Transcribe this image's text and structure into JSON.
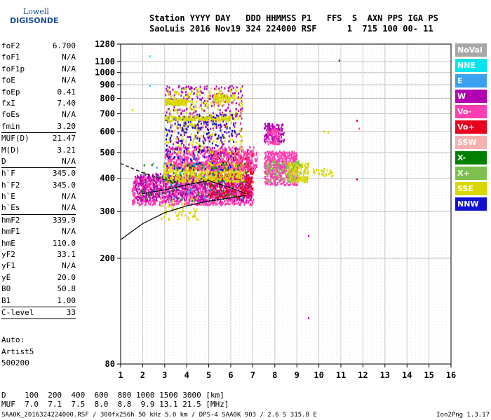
{
  "logo": {
    "top": "Lowell",
    "bottom": "DIGISONDE"
  },
  "header": {
    "line1": "Station YYYY DAY   DDD HHMMSS P1   FFS  S  AXN PPS IGA PS",
    "line2": "SaoLuis 2016 Nov19 324 224000 RSF      1  715 100 00- 11"
  },
  "params": [
    {
      "label": "foF2",
      "value": "6.700"
    },
    {
      "label": "foF1",
      "value": "N/A"
    },
    {
      "label": "foF1p",
      "value": "N/A"
    },
    {
      "label": "foE",
      "value": "N/A"
    },
    {
      "label": "foEp",
      "value": "0.41"
    },
    {
      "label": "fxI",
      "value": "7.40"
    },
    {
      "label": "foEs",
      "value": "N/A"
    },
    {
      "label": "fmin",
      "value": "3.20"
    },
    {
      "sep": true
    },
    {
      "label": "MUF(D)",
      "value": "21.47"
    },
    {
      "label": "M(D)",
      "value": "3.21"
    },
    {
      "label": "D",
      "value": "N/A"
    },
    {
      "sep": true
    },
    {
      "label": "h`F",
      "value": "345.0"
    },
    {
      "label": "h`F2",
      "value": "345.0"
    },
    {
      "label": "h`E",
      "value": "N/A"
    },
    {
      "label": "h`Es",
      "value": "N/A"
    },
    {
      "sep": true
    },
    {
      "label": "hmF2",
      "value": "339.9"
    },
    {
      "label": "hmF1",
      "value": "N/A"
    },
    {
      "label": "hmE",
      "value": "110.0"
    },
    {
      "label": "yF2",
      "value": "33.1"
    },
    {
      "label": "yF1",
      "value": "N/A"
    },
    {
      "label": "yE",
      "value": "20.0"
    },
    {
      "label": "B0",
      "value": "50.8"
    },
    {
      "label": "B1",
      "value": "1.00"
    },
    {
      "sep": true
    },
    {
      "label": "C-level",
      "value": "33"
    },
    {
      "sep": true
    }
  ],
  "auto": {
    "l1": "Auto:",
    "l2": "Artist5",
    "l3": "500200"
  },
  "legend": [
    {
      "name": "NoVal",
      "color": "#a8a8a8"
    },
    {
      "name": "NNE",
      "color": "#00e5ee"
    },
    {
      "name": "E",
      "color": "#3aa0f0"
    },
    {
      "name": "W",
      "color": "#b000b0"
    },
    {
      "name": "Vo-",
      "color": "#ff3fb0"
    },
    {
      "name": "Vo+",
      "color": "#e8001c"
    },
    {
      "name": "SSW",
      "color": "#f5b0b0"
    },
    {
      "name": "X-",
      "color": "#008000"
    },
    {
      "name": "X+",
      "color": "#7cc050"
    },
    {
      "name": "SSE",
      "color": "#d8d800"
    },
    {
      "name": "NNW",
      "color": "#1010d0"
    }
  ],
  "dmuf": {
    "d_line": "D    100  200  400  600  800 1000 1500 3000 [km]",
    "muf_line": "MUF  7.0  7.1  7.5  8.0  8.8  9.9 13.1 21.5 [MHz]"
  },
  "footer": {
    "left": "SAA0K_2016324224000.RSF / 300fx256h 50 kHz 5.0 km / DPS-4 SAA0K 903 / 2.6 S 315.8 E",
    "right": "Ion2Png 1.3.17"
  },
  "chart_data": {
    "type": "scatter",
    "xlim": [
      1,
      16
    ],
    "ylim": [
      80,
      1280
    ],
    "x_ticks": [
      "1",
      "2",
      "3",
      "4",
      "5",
      "6",
      "7",
      "8",
      "9",
      "10",
      "11",
      "12",
      "13",
      "14",
      "15",
      "16"
    ],
    "y_ticks": [
      "80",
      "200",
      "300",
      "400",
      "500",
      "600",
      "700",
      "800",
      "900",
      "1000",
      "1100",
      "1280"
    ],
    "y_scale": "logarithmic",
    "grid": true,
    "clusters": [
      {
        "color": "#ff3fb0",
        "fmin": 1.5,
        "fmax": 7.0,
        "hmin": 320,
        "hmax": 410,
        "n": 1400
      },
      {
        "color": "#b000b0",
        "fmin": 1.6,
        "fmax": 6.9,
        "hmin": 330,
        "hmax": 420,
        "n": 600
      },
      {
        "color": "#e8001c",
        "fmin": 5.0,
        "fmax": 7.0,
        "hmin": 340,
        "hmax": 510,
        "n": 450
      },
      {
        "color": "#d8d800",
        "fmin": 2.9,
        "fmax": 6.6,
        "hmin": 390,
        "hmax": 460,
        "n": 650
      },
      {
        "color": "#ff3fb0",
        "fmin": 3.0,
        "fmax": 7.2,
        "hmin": 430,
        "hmax": 530,
        "n": 600
      },
      {
        "color": "#b000b0",
        "fmin": 3.0,
        "fmax": 6.5,
        "hmin": 500,
        "hmax": 900,
        "n": 350
      },
      {
        "color": "#d8d800",
        "fmin": 3.0,
        "fmax": 6.5,
        "hmin": 500,
        "hmax": 880,
        "n": 300
      },
      {
        "color": "#1010d0",
        "fmin": 3.0,
        "fmax": 6.2,
        "hmin": 430,
        "hmax": 700,
        "n": 200
      },
      {
        "color": "#d8d800",
        "fmin": 3.0,
        "fmax": 4.0,
        "hmin": 760,
        "hmax": 800,
        "n": 110
      },
      {
        "color": "#d8d800",
        "fmin": 3.0,
        "fmax": 6.0,
        "hmin": 665,
        "hmax": 690,
        "n": 150
      },
      {
        "color": "#d8d800",
        "fmin": 5.2,
        "fmax": 5.9,
        "hmin": 770,
        "hmax": 840,
        "n": 70
      },
      {
        "color": "#ff3fb0",
        "fmin": 7.5,
        "fmax": 9.0,
        "hmin": 380,
        "hmax": 510,
        "n": 500
      },
      {
        "color": "#d8d800",
        "fmin": 8.5,
        "fmax": 9.5,
        "hmin": 390,
        "hmax": 460,
        "n": 180
      },
      {
        "color": "#7cc050",
        "fmin": 7.6,
        "fmax": 9.2,
        "hmin": 390,
        "hmax": 470,
        "n": 90
      },
      {
        "color": "#b000b0",
        "fmin": 7.5,
        "fmax": 8.4,
        "hmin": 550,
        "hmax": 650,
        "n": 120
      },
      {
        "color": "#ff3fb0",
        "fmin": 7.6,
        "fmax": 8.2,
        "hmin": 540,
        "hmax": 620,
        "n": 70
      },
      {
        "color": "#008000",
        "fmin": 1.8,
        "fmax": 6.8,
        "hmin": 330,
        "hmax": 460,
        "n": 90
      },
      {
        "color": "#3aa0f0",
        "fmin": 2.0,
        "fmax": 6.6,
        "hmin": 330,
        "hmax": 460,
        "n": 40
      },
      {
        "color": "#d8d800",
        "fmin": 9.7,
        "fmax": 10.6,
        "hmin": 410,
        "hmax": 440,
        "n": 30
      },
      {
        "color": "#d8d800",
        "fmin": 2.8,
        "fmax": 4.5,
        "hmin": 280,
        "hmax": 340,
        "n": 60
      }
    ],
    "isolated_points": [
      {
        "f": 2.3,
        "h": 1160,
        "color": "#00e5ee"
      },
      {
        "f": 10.9,
        "h": 1120,
        "color": "#1010d0"
      },
      {
        "f": 2.3,
        "h": 900,
        "color": "#00e5ee"
      },
      {
        "f": 1.5,
        "h": 730,
        "color": "#d8d800"
      },
      {
        "f": 9.5,
        "h": 245,
        "color": "#b000b0"
      },
      {
        "f": 9.5,
        "h": 120,
        "color": "#b000b0"
      },
      {
        "f": 11.7,
        "h": 665,
        "color": "#e8001c"
      },
      {
        "f": 11.7,
        "h": 400,
        "color": "#e8001c"
      },
      {
        "f": 11.8,
        "h": 620,
        "color": "#ff3fb0"
      },
      {
        "f": 10.2,
        "h": 605,
        "color": "#d8d800"
      },
      {
        "f": 10.4,
        "h": 600,
        "color": "#d8d800"
      }
    ],
    "profile_curve": {
      "color": "#000000",
      "x": [
        1,
        2,
        3,
        4,
        5,
        6,
        6.7
      ],
      "y": [
        235,
        270,
        297,
        315,
        328,
        338,
        345
      ]
    },
    "trace_curve": {
      "color": "#000000",
      "x": [
        2.0,
        3.0,
        4.0,
        5.0,
        6.0,
        6.7
      ],
      "y": [
        350,
        362,
        378,
        392,
        368,
        350
      ]
    },
    "dashed_curve": {
      "color": "#000000",
      "x": [
        1.0,
        2.0,
        3.0,
        3.5
      ],
      "y": [
        455,
        420,
        395,
        388
      ]
    }
  }
}
